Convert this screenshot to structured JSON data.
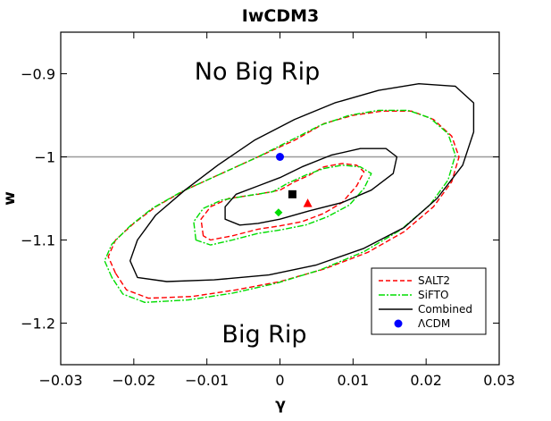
{
  "chart_data": {
    "type": "line",
    "title": "IwCDM3",
    "xlabel": "γ",
    "ylabel": "w",
    "xlim": [
      -0.03,
      0.03
    ],
    "ylim": [
      -1.25,
      -0.85
    ],
    "x_ticks": [
      -0.03,
      -0.02,
      -0.01,
      0,
      0.01,
      0.02,
      0.03
    ],
    "x_tick_labels": [
      "−0.03",
      "−0.02",
      "−0.01",
      "0",
      "0.01",
      "0.02",
      "0.03"
    ],
    "y_ticks": [
      -0.9,
      -1.0,
      -1.1,
      -1.2
    ],
    "y_tick_labels": [
      "−0.9",
      "−1",
      "−1.1",
      "−1.2"
    ],
    "reference_line": {
      "y": -1.0,
      "color": "#999999"
    },
    "annotations": [
      {
        "text": "No Big Rip",
        "x": -0.003,
        "y": -0.9
      },
      {
        "text": "Big Rip",
        "x": -0.002,
        "y": -1.22
      }
    ],
    "legend": {
      "placement": "bottom-right",
      "entries": [
        {
          "label": "SALT2",
          "color": "#ff0000",
          "style": "dashed"
        },
        {
          "label": "SiFTO",
          "color": "#00dd00",
          "style": "dashdot"
        },
        {
          "label": "Combined",
          "color": "#000000",
          "style": "solid"
        },
        {
          "label": "ΛCDM",
          "color": "#0000ff",
          "style": "circle-marker"
        }
      ]
    },
    "series": [
      {
        "name": "SALT2",
        "color": "#ff0000",
        "style": "dashed",
        "contours": [
          [
            [
              -0.0105,
              -1.095
            ],
            [
              -0.0108,
              -1.075
            ],
            [
              -0.0095,
              -1.06
            ],
            [
              -0.007,
              -1.05
            ],
            [
              -0.003,
              -1.045
            ],
            [
              0.0,
              -1.04
            ],
            [
              0.002,
              -1.03
            ],
            [
              0.004,
              -1.022
            ],
            [
              0.006,
              -1.012
            ],
            [
              0.0085,
              -1.008
            ],
            [
              0.0105,
              -1.01
            ],
            [
              0.0115,
              -1.018
            ],
            [
              0.0105,
              -1.035
            ],
            [
              0.0085,
              -1.055
            ],
            [
              0.006,
              -1.068
            ],
            [
              0.003,
              -1.078
            ],
            [
              0.0,
              -1.083
            ],
            [
              -0.003,
              -1.087
            ],
            [
              -0.0065,
              -1.095
            ],
            [
              -0.0095,
              -1.1
            ],
            [
              -0.0105,
              -1.095
            ]
          ],
          [
            [
              -0.0225,
              -1.14
            ],
            [
              -0.0235,
              -1.12
            ],
            [
              -0.0225,
              -1.1
            ],
            [
              -0.02,
              -1.08
            ],
            [
              -0.017,
              -1.06
            ],
            [
              -0.013,
              -1.04
            ],
            [
              -0.008,
              -1.02
            ],
            [
              -0.003,
              -1.0
            ],
            [
              0.002,
              -0.98
            ],
            [
              0.006,
              -0.96
            ],
            [
              0.01,
              -0.95
            ],
            [
              0.014,
              -0.945
            ],
            [
              0.018,
              -0.945
            ],
            [
              0.021,
              -0.955
            ],
            [
              0.0235,
              -0.975
            ],
            [
              0.0245,
              -1.0
            ],
            [
              0.0235,
              -1.03
            ],
            [
              0.021,
              -1.06
            ],
            [
              0.017,
              -1.09
            ],
            [
              0.012,
              -1.115
            ],
            [
              0.006,
              -1.135
            ],
            [
              0.0,
              -1.15
            ],
            [
              -0.006,
              -1.16
            ],
            [
              -0.012,
              -1.168
            ],
            [
              -0.018,
              -1.17
            ],
            [
              -0.021,
              -1.16
            ],
            [
              -0.0225,
              -1.14
            ]
          ]
        ]
      },
      {
        "name": "SiFTO",
        "color": "#00dd00",
        "style": "dashdot",
        "contours": [
          [
            [
              -0.0115,
              -1.1
            ],
            [
              -0.0118,
              -1.078
            ],
            [
              -0.0105,
              -1.062
            ],
            [
              -0.008,
              -1.052
            ],
            [
              -0.004,
              -1.046
            ],
            [
              -0.001,
              -1.042
            ],
            [
              0.001,
              -1.032
            ],
            [
              0.0035,
              -1.022
            ],
            [
              0.006,
              -1.014
            ],
            [
              0.0085,
              -1.01
            ],
            [
              0.011,
              -1.012
            ],
            [
              0.0125,
              -1.02
            ],
            [
              0.0115,
              -1.038
            ],
            [
              0.0095,
              -1.058
            ],
            [
              0.0065,
              -1.072
            ],
            [
              0.0035,
              -1.082
            ],
            [
              0.0,
              -1.088
            ],
            [
              -0.003,
              -1.092
            ],
            [
              -0.0065,
              -1.1
            ],
            [
              -0.0095,
              -1.106
            ],
            [
              -0.0115,
              -1.1
            ]
          ],
          [
            [
              -0.023,
              -1.145
            ],
            [
              -0.024,
              -1.125
            ],
            [
              -0.023,
              -1.105
            ],
            [
              -0.0205,
              -1.083
            ],
            [
              -0.0175,
              -1.062
            ],
            [
              -0.0135,
              -1.042
            ],
            [
              -0.0085,
              -1.022
            ],
            [
              -0.0035,
              -1.002
            ],
            [
              0.0015,
              -0.98
            ],
            [
              0.0055,
              -0.962
            ],
            [
              0.0095,
              -0.95
            ],
            [
              0.0135,
              -0.944
            ],
            [
              0.0175,
              -0.944
            ],
            [
              0.0205,
              -0.953
            ],
            [
              0.023,
              -0.972
            ],
            [
              0.024,
              -0.998
            ],
            [
              0.023,
              -1.028
            ],
            [
              0.0205,
              -1.058
            ],
            [
              0.0165,
              -1.088
            ],
            [
              0.0115,
              -1.114
            ],
            [
              0.0055,
              -1.136
            ],
            [
              -0.0005,
              -1.152
            ],
            [
              -0.0065,
              -1.164
            ],
            [
              -0.0125,
              -1.172
            ],
            [
              -0.0185,
              -1.175
            ],
            [
              -0.0215,
              -1.165
            ],
            [
              -0.023,
              -1.145
            ]
          ]
        ]
      },
      {
        "name": "Combined",
        "color": "#000000",
        "style": "solid",
        "contours": [
          [
            [
              -0.0075,
              -1.075
            ],
            [
              -0.0075,
              -1.06
            ],
            [
              -0.006,
              -1.045
            ],
            [
              -0.003,
              -1.035
            ],
            [
              0.0,
              -1.025
            ],
            [
              0.003,
              -1.012
            ],
            [
              0.007,
              -0.998
            ],
            [
              0.011,
              -0.99
            ],
            [
              0.0145,
              -0.99
            ],
            [
              0.016,
              -1.0
            ],
            [
              0.0155,
              -1.02
            ],
            [
              0.0125,
              -1.04
            ],
            [
              0.0085,
              -1.055
            ],
            [
              0.004,
              -1.065
            ],
            [
              0.0,
              -1.075
            ],
            [
              -0.003,
              -1.08
            ],
            [
              -0.0055,
              -1.082
            ],
            [
              -0.0075,
              -1.075
            ]
          ],
          [
            [
              -0.0195,
              -1.145
            ],
            [
              -0.0205,
              -1.125
            ],
            [
              -0.0195,
              -1.1
            ],
            [
              -0.017,
              -1.07
            ],
            [
              -0.013,
              -1.04
            ],
            [
              -0.0085,
              -1.01
            ],
            [
              -0.0035,
              -0.98
            ],
            [
              0.002,
              -0.955
            ],
            [
              0.0075,
              -0.935
            ],
            [
              0.0135,
              -0.92
            ],
            [
              0.019,
              -0.912
            ],
            [
              0.024,
              -0.915
            ],
            [
              0.0265,
              -0.935
            ],
            [
              0.0265,
              -0.97
            ],
            [
              0.025,
              -1.01
            ],
            [
              0.0215,
              -1.05
            ],
            [
              0.017,
              -1.085
            ],
            [
              0.0115,
              -1.11
            ],
            [
              0.005,
              -1.13
            ],
            [
              -0.0015,
              -1.142
            ],
            [
              -0.009,
              -1.148
            ],
            [
              -0.0155,
              -1.15
            ],
            [
              -0.0195,
              -1.145
            ]
          ]
        ]
      }
    ],
    "markers": [
      {
        "name": "ΛCDM",
        "shape": "circle",
        "color": "#0000ff",
        "x": 0.0,
        "y": -1.0
      },
      {
        "name": "SALT2 best fit",
        "shape": "triangle",
        "color": "#ff0000",
        "x": 0.0038,
        "y": -1.056
      },
      {
        "name": "SiFTO best fit",
        "shape": "diamond",
        "color": "#00dd00",
        "x": -0.0002,
        "y": -1.067
      },
      {
        "name": "Combined best fit",
        "shape": "square",
        "color": "#000000",
        "x": 0.0017,
        "y": -1.045
      }
    ]
  }
}
